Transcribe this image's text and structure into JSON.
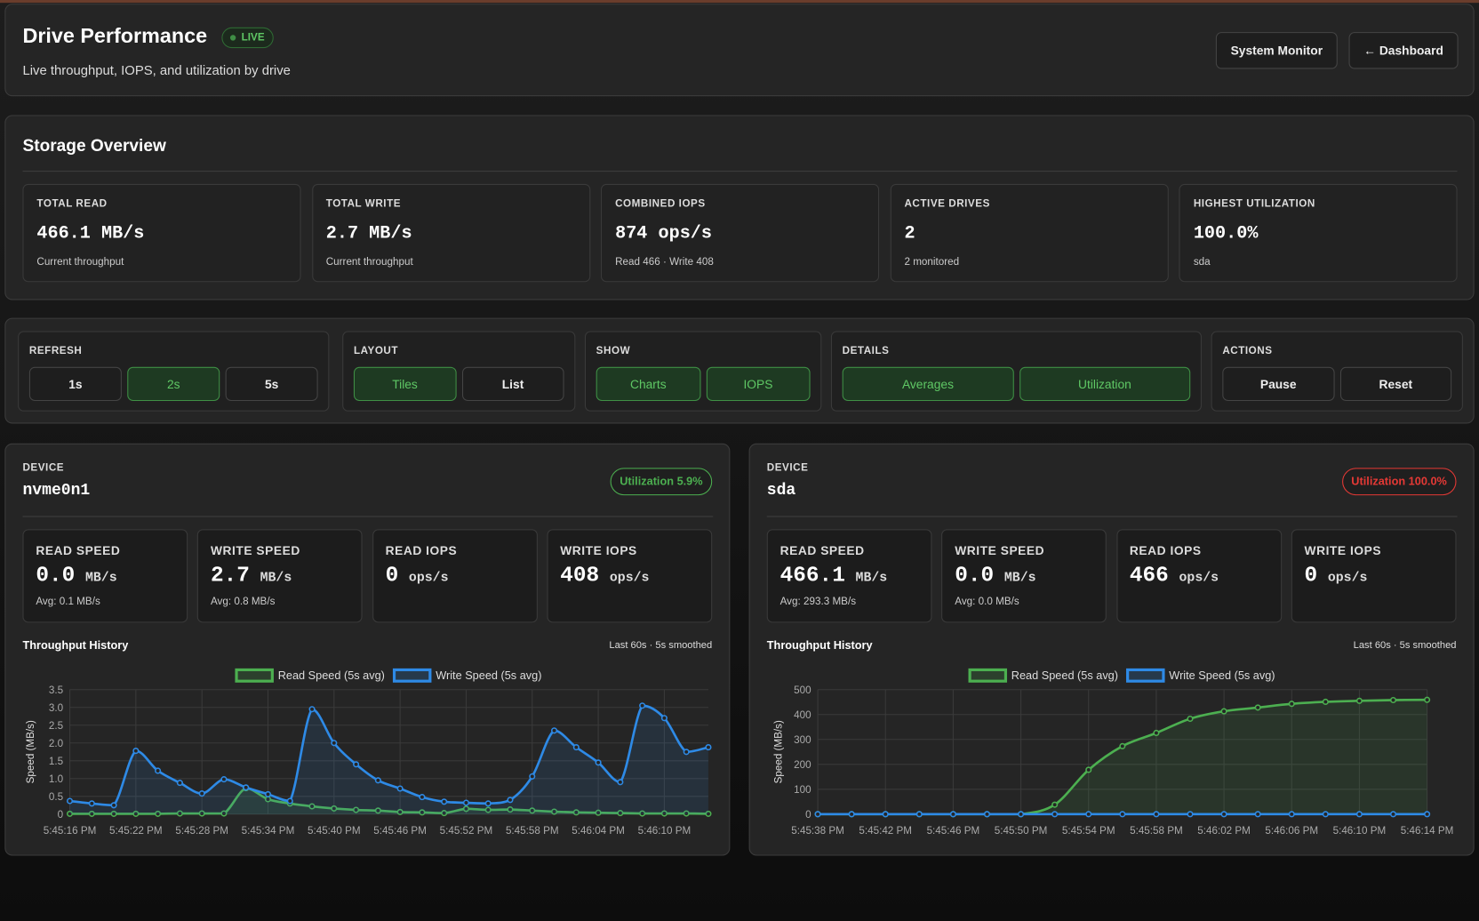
{
  "header": {
    "title": "Drive Performance",
    "badge": "LIVE",
    "subtitle": "Live throughput, IOPS, and utilization by drive",
    "buttons": [
      "System Monitor",
      "← Dashboard"
    ]
  },
  "overview": {
    "title": "Storage Overview",
    "cards": [
      {
        "label": "TOTAL READ",
        "value": "466.1 MB/s",
        "note": "Current throughput"
      },
      {
        "label": "TOTAL WRITE",
        "value": "2.7 MB/s",
        "note": "Current throughput"
      },
      {
        "label": "COMBINED IOPS",
        "value": "874 ops/s",
        "note": "Read 466 · Write 408"
      },
      {
        "label": "ACTIVE DRIVES",
        "value": "2",
        "note": "2 monitored"
      },
      {
        "label": "HIGHEST UTILIZATION",
        "value": "100.0%",
        "note": "sda"
      }
    ]
  },
  "controls": [
    {
      "label": "REFRESH",
      "options": [
        {
          "text": "1s",
          "active": false
        },
        {
          "text": "2s",
          "active": true
        },
        {
          "text": "5s",
          "active": false
        }
      ]
    },
    {
      "label": "LAYOUT",
      "options": [
        {
          "text": "Tiles",
          "active": true
        },
        {
          "text": "List",
          "active": false
        }
      ]
    },
    {
      "label": "SHOW",
      "options": [
        {
          "text": "Charts",
          "active": true
        },
        {
          "text": "IOPS",
          "active": true
        }
      ]
    },
    {
      "label": "DETAILS",
      "options": [
        {
          "text": "Averages",
          "active": true
        },
        {
          "text": "Utilization",
          "active": true
        }
      ]
    },
    {
      "label": "ACTIONS",
      "options": [
        {
          "text": "Pause",
          "active": false
        },
        {
          "text": "Reset",
          "active": false
        }
      ]
    }
  ],
  "devices": [
    {
      "label": "DEVICE",
      "name": "nvme0n1",
      "utilization": "Utilization 5.9%",
      "badge_color": "#4caf50",
      "stats": [
        {
          "label": "READ SPEED",
          "value": "0.0",
          "unit": "MB/s",
          "avg": "Avg: 0.1 MB/s"
        },
        {
          "label": "WRITE SPEED",
          "value": "2.7",
          "unit": "MB/s",
          "avg": "Avg: 0.8 MB/s"
        },
        {
          "label": "READ IOPS",
          "value": "0",
          "unit": "ops/s"
        },
        {
          "label": "WRITE IOPS",
          "value": "408",
          "unit": "ops/s"
        }
      ],
      "chart_title": "Throughput History",
      "chart_note": "Last 60s · 5s smoothed",
      "chart": {
        "type": "line",
        "y_label": "Speed (MB/s)",
        "x": [
          "5:45:16 PM",
          null,
          null,
          "5:45:22 PM",
          null,
          null,
          "5:45:28 PM",
          null,
          null,
          "5:45:34 PM",
          null,
          null,
          "5:45:40 PM",
          null,
          null,
          "5:45:46 PM",
          null,
          null,
          "5:45:52 PM",
          null,
          null,
          "5:45:58 PM",
          null,
          null,
          "5:46:04 PM",
          null,
          null,
          "5:46:10 PM",
          null,
          null
        ],
        "series": [
          {
            "name": "Read Speed (5s avg)",
            "color": "#4caf50",
            "values": [
              0.01,
              0.01,
              0.01,
              0.01,
              0.01,
              0.02,
              0.02,
              0.02,
              0.73,
              0.42,
              0.3,
              0.22,
              0.16,
              0.12,
              0.1,
              0.06,
              0.05,
              0.03,
              0.15,
              0.12,
              0.13,
              0.1,
              0.07,
              0.05,
              0.04,
              0.03,
              0.02,
              0.02,
              0.02,
              0.01
            ]
          },
          {
            "name": "Write Speed (5s avg)",
            "color": "#2e8ae6",
            "values": [
              0.37,
              0.3,
              0.25,
              1.78,
              1.22,
              0.88,
              0.58,
              0.98,
              0.75,
              0.56,
              0.37,
              2.95,
              2.0,
              1.4,
              0.95,
              0.72,
              0.48,
              0.35,
              0.32,
              0.3,
              0.4,
              1.06,
              2.35,
              1.88,
              1.45,
              0.9,
              3.05,
              2.7,
              1.75,
              1.88
            ]
          }
        ],
        "ylim": [
          0,
          3.5
        ],
        "yticks": [
          0,
          0.5,
          {
            "value": 1,
            "label": "1.0"
          },
          1.5,
          {
            "value": 2,
            "label": "2.0"
          },
          2.5,
          {
            "value": 3,
            "label": "3.0"
          },
          3.5
        ],
        "grid": true
      }
    },
    {
      "label": "DEVICE",
      "name": "sda",
      "utilization": "Utilization 100.0%",
      "badge_color": "#e53935",
      "stats": [
        {
          "label": "READ SPEED",
          "value": "466.1",
          "unit": "MB/s",
          "avg": "Avg: 293.3 MB/s"
        },
        {
          "label": "WRITE SPEED",
          "value": "0.0",
          "unit": "MB/s",
          "avg": "Avg: 0.0 MB/s"
        },
        {
          "label": "READ IOPS",
          "value": "466",
          "unit": "ops/s"
        },
        {
          "label": "WRITE IOPS",
          "value": "0",
          "unit": "ops/s"
        }
      ],
      "chart_title": "Throughput History",
      "chart_note": "Last 60s · 5s smoothed",
      "chart": {
        "type": "line",
        "y_label": "Speed (MB/s)",
        "x": [
          "5:45:38 PM",
          null,
          "5:45:42 PM",
          null,
          "5:45:46 PM",
          null,
          "5:45:50 PM",
          null,
          "5:45:54 PM",
          null,
          "5:45:58 PM",
          null,
          "5:46:02 PM",
          null,
          "5:46:06 PM",
          null,
          "5:46:10 PM",
          null,
          "5:46:14 PM"
        ],
        "series": [
          {
            "name": "Read Speed (5s avg)",
            "color": "#4caf50",
            "values": [
              0,
              0,
              0,
              0,
              0,
              0,
              0,
              38,
              178,
              273,
              326,
              383,
              413,
              428,
              443,
              451,
              455,
              458,
              459
            ]
          },
          {
            "name": "Write Speed (5s avg)",
            "color": "#2e8ae6",
            "values": [
              0,
              0,
              0,
              0,
              0,
              0,
              0,
              0,
              0,
              0,
              0,
              0,
              0,
              0,
              0,
              0,
              0,
              0,
              0
            ]
          }
        ],
        "ylim": [
          0,
          500
        ],
        "yticks": [
          0,
          100,
          200,
          300,
          400,
          500
        ],
        "grid": true
      }
    }
  ]
}
